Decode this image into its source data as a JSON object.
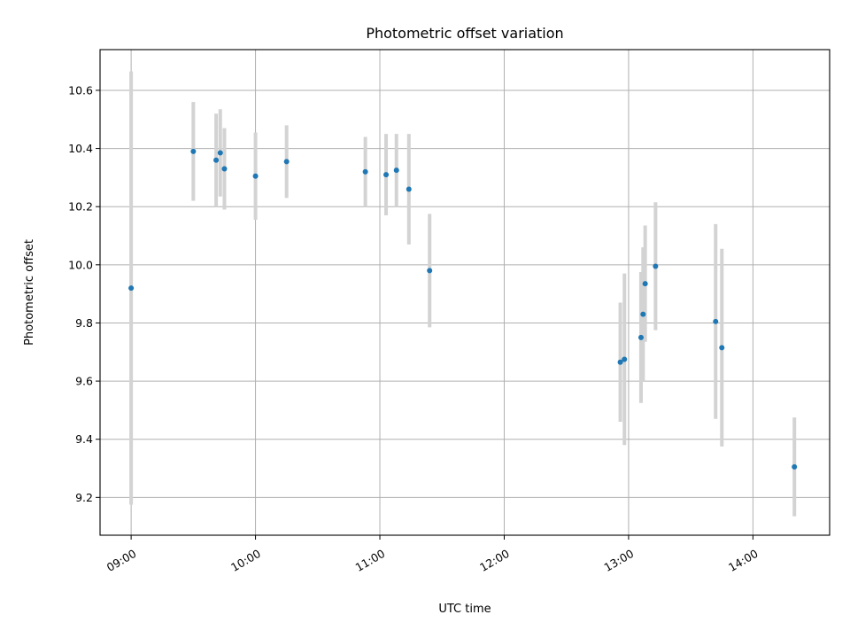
{
  "chart_data": {
    "type": "scatter",
    "title": "Photometric offset variation",
    "xlabel": "UTC time",
    "ylabel": "Photometric offset",
    "grid": true,
    "xlim": [
      "08:45",
      "14:37"
    ],
    "ylim": [
      9.07,
      10.74
    ],
    "x_ticks": [
      "09:00",
      "10:00",
      "11:00",
      "12:00",
      "13:00",
      "14:00"
    ],
    "y_ticks": [
      "9.2",
      "9.4",
      "9.6",
      "9.8",
      "10.0",
      "10.2",
      "10.4",
      "10.6"
    ],
    "point_color": "#1f77b4",
    "errorbar_color": "#d3d3d3",
    "points": [
      {
        "x": "09:00",
        "y": 9.92,
        "err": 0.745
      },
      {
        "x": "09:30",
        "y": 10.39,
        "err": 0.17
      },
      {
        "x": "09:41",
        "y": 10.36,
        "err": 0.16
      },
      {
        "x": "09:43",
        "y": 10.385,
        "err": 0.15
      },
      {
        "x": "09:45",
        "y": 10.33,
        "err": 0.14
      },
      {
        "x": "10:00",
        "y": 10.305,
        "err": 0.15
      },
      {
        "x": "10:15",
        "y": 10.355,
        "err": 0.125
      },
      {
        "x": "10:53",
        "y": 10.32,
        "err": 0.12
      },
      {
        "x": "11:03",
        "y": 10.31,
        "err": 0.14
      },
      {
        "x": "11:08",
        "y": 10.325,
        "err": 0.125
      },
      {
        "x": "11:14",
        "y": 10.26,
        "err": 0.19
      },
      {
        "x": "11:24",
        "y": 9.98,
        "err": 0.195
      },
      {
        "x": "12:56",
        "y": 9.665,
        "err": 0.205
      },
      {
        "x": "12:58",
        "y": 9.675,
        "err": 0.295
      },
      {
        "x": "13:06",
        "y": 9.75,
        "err": 0.225
      },
      {
        "x": "13:07",
        "y": 9.83,
        "err": 0.23
      },
      {
        "x": "13:08",
        "y": 9.935,
        "err": 0.2
      },
      {
        "x": "13:13",
        "y": 9.995,
        "err": 0.22
      },
      {
        "x": "13:42",
        "y": 9.805,
        "err": 0.335
      },
      {
        "x": "13:45",
        "y": 9.715,
        "err": 0.34
      },
      {
        "x": "14:20",
        "y": 9.305,
        "err": 0.17
      }
    ]
  }
}
